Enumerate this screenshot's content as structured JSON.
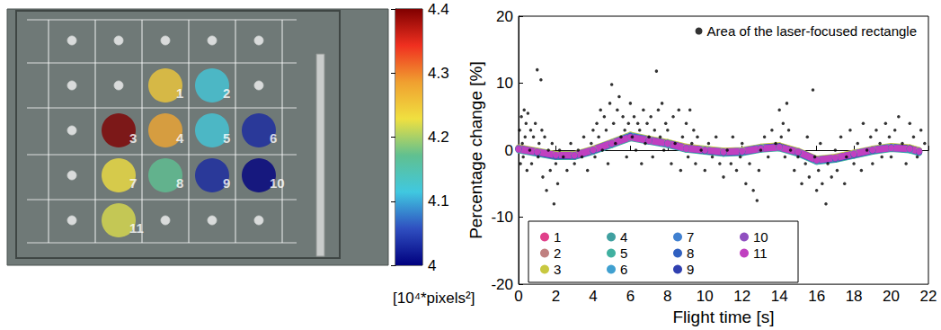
{
  "chart_data": [
    {
      "type": "dot_map",
      "points": [
        {
          "label": "1",
          "col": 3,
          "row": 2,
          "value": 4.25
        },
        {
          "label": "2",
          "col": 4,
          "row": 2,
          "value": 4.12
        },
        {
          "label": "3",
          "col": 2,
          "row": 3,
          "value": 4.4
        },
        {
          "label": "4",
          "col": 3,
          "row": 3,
          "value": 4.28
        },
        {
          "label": "5",
          "col": 4,
          "row": 3,
          "value": 4.12
        },
        {
          "label": "6",
          "col": 5,
          "row": 3,
          "value": 4.03
        },
        {
          "label": "7",
          "col": 2,
          "row": 4,
          "value": 4.23
        },
        {
          "label": "8",
          "col": 3,
          "row": 4,
          "value": 4.17
        },
        {
          "label": "9",
          "col": 4,
          "row": 4,
          "value": 4.03
        },
        {
          "label": "10",
          "col": 5,
          "row": 4,
          "value": 4.0
        },
        {
          "label": "11",
          "col": 2,
          "row": 5,
          "value": 4.22
        }
      ],
      "colorbar": {
        "range": [
          4,
          4.4
        ],
        "ticks": [
          4,
          4.1,
          4.2,
          4.3,
          4.4
        ],
        "label": "[10⁴*pixels²]",
        "colors": [
          "#00007f",
          "#2f4fc0",
          "#40c8e0",
          "#60c090",
          "#f0e040",
          "#f0a030",
          "#f03020",
          "#800000"
        ]
      }
    },
    {
      "type": "scatter",
      "xlabel": "Flight time [s]",
      "ylabel": "Percentage change [%]",
      "xlim": [
        0,
        22
      ],
      "xticks": [
        0,
        2,
        4,
        6,
        8,
        10,
        12,
        14,
        16,
        18,
        20,
        22
      ],
      "ylim": [
        -20,
        20
      ],
      "yticks": [
        -20,
        -10,
        0,
        10,
        20
      ],
      "grid": false,
      "x": [
        0,
        1,
        2,
        3,
        4,
        5,
        6,
        7,
        8,
        9,
        10,
        11,
        12,
        13,
        14,
        15,
        16,
        17,
        18,
        19,
        20,
        21,
        21.5
      ],
      "series": [
        {
          "name": "Area of the laser-focused rectangle",
          "type": "scatter",
          "color": "#000000",
          "marker": "dot",
          "x": [
            0.05,
            0.1,
            0.15,
            0.2,
            0.25,
            0.3,
            0.35,
            0.4,
            0.45,
            0.5,
            0.6,
            0.65,
            0.7,
            0.8,
            0.9,
            1.0,
            1.05,
            1.1,
            1.2,
            1.25,
            1.3,
            1.4,
            1.5,
            1.6,
            1.7,
            1.8,
            1.9,
            2.0,
            2.1,
            2.2,
            2.4,
            2.6,
            2.8,
            3.0,
            3.2,
            3.4,
            3.5,
            3.7,
            3.9,
            4.0,
            4.1,
            4.2,
            4.3,
            4.4,
            4.5,
            4.6,
            4.7,
            4.8,
            4.9,
            5.0,
            5.1,
            5.2,
            5.3,
            5.4,
            5.5,
            5.6,
            5.7,
            5.8,
            5.9,
            6.0,
            6.1,
            6.2,
            6.3,
            6.4,
            6.5,
            6.6,
            6.7,
            6.8,
            6.9,
            7.0,
            7.1,
            7.2,
            7.3,
            7.4,
            7.5,
            7.6,
            7.7,
            7.8,
            7.9,
            8.0,
            8.2,
            8.3,
            8.4,
            8.6,
            8.7,
            8.8,
            9.0,
            9.1,
            9.2,
            9.3,
            9.4,
            9.5,
            9.6,
            9.8,
            10.0,
            10.2,
            10.4,
            10.6,
            10.8,
            11.0,
            11.2,
            11.4,
            11.5,
            11.7,
            11.9,
            12.0,
            12.2,
            12.4,
            12.6,
            12.8,
            12.9,
            13.0,
            13.2,
            13.4,
            13.6,
            13.8,
            14.0,
            14.1,
            14.2,
            14.3,
            14.4,
            14.5,
            14.6,
            14.8,
            15.0,
            15.2,
            15.4,
            15.5,
            15.6,
            15.8,
            15.9,
            16.0,
            16.1,
            16.2,
            16.3,
            16.5,
            16.6,
            16.8,
            17.0,
            17.1,
            17.3,
            17.5,
            17.6,
            17.8,
            18.0,
            18.2,
            18.4,
            18.5,
            18.7,
            18.9,
            19.0,
            19.2,
            19.4,
            19.5,
            19.7,
            19.9,
            20.0,
            20.2,
            20.4,
            20.6,
            20.8,
            21.0,
            21.2,
            21.4,
            21.6,
            21.8
          ],
          "values": [
            3,
            -2,
            5,
            1,
            -1,
            6,
            2,
            4,
            -3,
            5.5,
            0,
            3,
            -2,
            2,
            4,
            12,
            -1,
            1,
            10.5,
            3,
            -4,
            2,
            -6,
            0,
            -3,
            1,
            -8,
            -2,
            -5,
            0,
            -1,
            -3,
            1,
            -2,
            0,
            -1,
            2,
            -3,
            1,
            3,
            -1,
            4,
            2,
            6,
            0,
            5,
            3,
            -2,
            7,
            9.8,
            4,
            1,
            6,
            8,
            2,
            5,
            3,
            -1,
            4,
            7,
            2,
            5,
            0,
            4,
            3,
            -2,
            6,
            1,
            4,
            2,
            5,
            -1,
            3,
            11.8,
            6,
            2,
            7,
            0,
            4,
            3,
            -2,
            5,
            1,
            6,
            -3,
            2,
            4,
            -1,
            6,
            1,
            3,
            -2,
            2,
            0,
            -3,
            1,
            -1,
            2,
            -2,
            -4,
            0,
            -2,
            2,
            -3,
            -1,
            1,
            -5,
            -2,
            -6,
            -7.5,
            -3,
            0,
            2,
            -1,
            3,
            1,
            6,
            2,
            4,
            -1,
            7,
            3,
            0,
            -3,
            -1,
            -5,
            -2,
            2,
            -4,
            9,
            -1,
            -6,
            -3,
            1,
            -5,
            -8,
            -2,
            -4,
            0,
            -3,
            2,
            -5,
            -1,
            3,
            -2,
            1,
            -3,
            4,
            0,
            2,
            -2,
            3,
            1,
            -1,
            4,
            2,
            -1,
            3,
            5,
            1,
            -2,
            4,
            2,
            -1,
            3,
            1
          ]
        },
        {
          "name": "1",
          "type": "line",
          "color": "#e0408a",
          "marker": "circle",
          "values": [
            0.3,
            -0.2,
            -0.7,
            -0.9,
            0.1,
            1.1,
            2.1,
            1.4,
            0.9,
            0.4,
            0.1,
            -0.2,
            -0.1,
            0.4,
            0.6,
            -0.2,
            -1.4,
            -1.1,
            -0.5,
            0.1,
            0.5,
            0.3,
            -0.1
          ]
        },
        {
          "name": "2",
          "type": "line",
          "color": "#c08080",
          "marker": "circle",
          "values": [
            0.1,
            -0.4,
            -0.9,
            -0.7,
            -0.1,
            0.9,
            1.9,
            1.6,
            1.1,
            0.2,
            -0.1,
            -0.4,
            -0.3,
            0.2,
            0.4,
            -0.4,
            -1.6,
            -1.3,
            -0.7,
            -0.1,
            0.3,
            0.1,
            -0.3
          ]
        },
        {
          "name": "3",
          "type": "line",
          "color": "#c8c840",
          "marker": "circle",
          "values": [
            0.4,
            -0.1,
            -0.6,
            -0.6,
            0.2,
            1.2,
            2.3,
            1.7,
            1.2,
            0.5,
            0.2,
            -0.1,
            0,
            0.5,
            0.7,
            -0.1,
            -1.3,
            -1,
            -0.4,
            0.2,
            0.6,
            0.4,
            0
          ]
        },
        {
          "name": "4",
          "type": "line",
          "color": "#40a0a0",
          "marker": "circle",
          "values": [
            0.2,
            -0.3,
            -0.8,
            -0.8,
            0,
            1,
            2,
            1.5,
            1,
            0.3,
            0,
            -0.3,
            -0.2,
            0.3,
            0.5,
            -0.3,
            -1.5,
            -1.2,
            -0.6,
            0,
            0.4,
            0.2,
            -0.2
          ]
        },
        {
          "name": "5",
          "type": "line",
          "color": "#40b0a0",
          "marker": "circle",
          "values": [
            0,
            -0.5,
            -1,
            -1,
            -0.2,
            0.8,
            1.8,
            1.3,
            0.8,
            0.1,
            -0.2,
            -0.5,
            -0.4,
            0.1,
            0.3,
            -0.5,
            -1.7,
            -1.4,
            -0.8,
            -0.2,
            0.2,
            0,
            -0.4
          ]
        },
        {
          "name": "6",
          "type": "line",
          "color": "#40a0d0",
          "marker": "circle",
          "values": [
            0.3,
            -0.3,
            -0.9,
            -0.8,
            0.1,
            1.1,
            2.2,
            1.6,
            1,
            0.3,
            0.1,
            -0.3,
            -0.1,
            0.4,
            0.5,
            -0.3,
            -1.6,
            -1.2,
            -0.5,
            0.1,
            0.5,
            0.2,
            -0.2
          ]
        },
        {
          "name": "7",
          "type": "line",
          "color": "#4080d0",
          "marker": "circle",
          "values": [
            0.1,
            -0.2,
            -0.7,
            -0.7,
            0,
            0.9,
            2,
            1.4,
            0.9,
            0.2,
            0,
            -0.2,
            -0.2,
            0.3,
            0.4,
            -0.2,
            -1.4,
            -1.1,
            -0.6,
            0,
            0.3,
            0.1,
            -0.1
          ]
        },
        {
          "name": "8",
          "type": "line",
          "color": "#3060c0",
          "marker": "circle",
          "values": [
            0.2,
            -0.4,
            -0.8,
            -0.9,
            -0.1,
            1,
            2.1,
            1.5,
            1.1,
            0.3,
            0,
            -0.4,
            -0.3,
            0.2,
            0.5,
            -0.4,
            -1.5,
            -1.3,
            -0.6,
            -0.1,
            0.4,
            0.2,
            -0.3
          ]
        },
        {
          "name": "9",
          "type": "line",
          "color": "#3040b0",
          "marker": "circle",
          "values": [
            0.2,
            -0.3,
            -0.9,
            -0.8,
            0,
            1,
            2,
            1.5,
            1,
            0.3,
            -0.1,
            -0.3,
            -0.2,
            0.3,
            0.6,
            -0.3,
            -1.5,
            -1.2,
            -0.7,
            0,
            0.4,
            0.3,
            -0.2
          ]
        },
        {
          "name": "10",
          "type": "line",
          "color": "#9050c0",
          "marker": "circle",
          "values": [
            0.3,
            -0.2,
            -0.8,
            -0.7,
            0.1,
            1.1,
            2,
            1.6,
            1,
            0.4,
            0,
            -0.2,
            -0.1,
            0.3,
            0.5,
            -0.2,
            -1.4,
            -1.2,
            -0.5,
            0.1,
            0.4,
            0.2,
            -0.1
          ]
        },
        {
          "name": "11",
          "type": "line",
          "color": "#c040c0",
          "marker": "circle",
          "values": [
            0.1,
            -0.3,
            -0.7,
            -0.8,
            0,
            1,
            1.9,
            1.4,
            1,
            0.2,
            0,
            -0.3,
            -0.2,
            0.2,
            0.4,
            -0.3,
            -1.5,
            -1.1,
            -0.6,
            0,
            0.3,
            0.2,
            -0.2
          ]
        }
      ]
    }
  ]
}
